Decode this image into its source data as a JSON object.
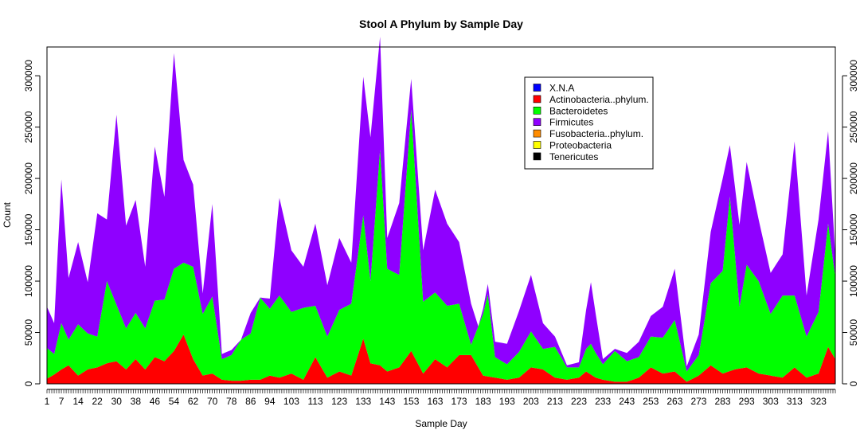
{
  "chart_data": {
    "type": "area",
    "stacked": true,
    "title": "Stool A Phylum by Sample Day",
    "xlabel": "Sample Day",
    "ylabel": "Count",
    "xlim": [
      1,
      330
    ],
    "ylim": [
      0,
      328000
    ],
    "x_ticks": [
      1,
      7,
      14,
      22,
      30,
      38,
      46,
      54,
      62,
      70,
      78,
      86,
      94,
      103,
      113,
      123,
      133,
      143,
      153,
      163,
      173,
      183,
      193,
      203,
      213,
      223,
      233,
      243,
      253,
      263,
      273,
      283,
      293,
      303,
      313,
      323
    ],
    "y_ticks": [
      0,
      50000,
      100000,
      150000,
      200000,
      250000,
      300000
    ],
    "y_axes": [
      "left",
      "right"
    ],
    "grid": false,
    "legend_position": "top-right",
    "legend": [
      {
        "label": "X.N.A",
        "color": "#0000ff"
      },
      {
        "label": "Actinobacteria..phylum.",
        "color": "#ff0000"
      },
      {
        "label": "Bacteroidetes",
        "color": "#00ff00"
      },
      {
        "label": "Firmicutes",
        "color": "#8f00ff"
      },
      {
        "label": "Fusobacteria..phylum.",
        "color": "#ff8c00"
      },
      {
        "label": "Proteobacteria",
        "color": "#ffff00"
      },
      {
        "label": "Tenericutes",
        "color": "#000000"
      }
    ],
    "stack_order": [
      "Actinobacteria..phylum.",
      "Bacteroidetes",
      "Firmicutes"
    ],
    "series": [
      {
        "name": "Actinobacteria..phylum.",
        "color": "#ff0000",
        "points": [
          [
            1,
            5000
          ],
          [
            4,
            9000
          ],
          [
            7,
            14000
          ],
          [
            10,
            18000
          ],
          [
            14,
            8000
          ],
          [
            18,
            14000
          ],
          [
            22,
            16000
          ],
          [
            26,
            20000
          ],
          [
            30,
            22000
          ],
          [
            34,
            14000
          ],
          [
            38,
            24000
          ],
          [
            42,
            14000
          ],
          [
            46,
            26000
          ],
          [
            50,
            22000
          ],
          [
            54,
            32000
          ],
          [
            58,
            48000
          ],
          [
            62,
            24000
          ],
          [
            66,
            8000
          ],
          [
            70,
            10000
          ],
          [
            74,
            4000
          ],
          [
            78,
            3000
          ],
          [
            82,
            3000
          ],
          [
            86,
            4000
          ],
          [
            90,
            4000
          ],
          [
            94,
            8000
          ],
          [
            98,
            6000
          ],
          [
            103,
            10000
          ],
          [
            108,
            4000
          ],
          [
            113,
            26000
          ],
          [
            118,
            6000
          ],
          [
            123,
            12000
          ],
          [
            128,
            8000
          ],
          [
            133,
            44000
          ],
          [
            136,
            20000
          ],
          [
            140,
            18000
          ],
          [
            143,
            12000
          ],
          [
            148,
            16000
          ],
          [
            153,
            32000
          ],
          [
            158,
            10000
          ],
          [
            163,
            24000
          ],
          [
            168,
            16000
          ],
          [
            173,
            28000
          ],
          [
            178,
            28000
          ],
          [
            183,
            8000
          ],
          [
            188,
            6000
          ],
          [
            193,
            4000
          ],
          [
            198,
            6000
          ],
          [
            203,
            16000
          ],
          [
            208,
            14000
          ],
          [
            213,
            6000
          ],
          [
            218,
            4000
          ],
          [
            223,
            6000
          ],
          [
            226,
            12000
          ],
          [
            230,
            6000
          ],
          [
            233,
            4000
          ],
          [
            238,
            2000
          ],
          [
            243,
            2000
          ],
          [
            248,
            6000
          ],
          [
            253,
            16000
          ],
          [
            258,
            10000
          ],
          [
            263,
            12000
          ],
          [
            268,
            2000
          ],
          [
            273,
            8000
          ],
          [
            278,
            18000
          ],
          [
            283,
            10000
          ],
          [
            288,
            14000
          ],
          [
            293,
            16000
          ],
          [
            298,
            10000
          ],
          [
            303,
            8000
          ],
          [
            308,
            6000
          ],
          [
            313,
            16000
          ],
          [
            318,
            6000
          ],
          [
            323,
            10000
          ],
          [
            327,
            36000
          ],
          [
            330,
            24000
          ]
        ]
      },
      {
        "name": "Bacteroidetes",
        "color": "#00ff00",
        "points": [
          [
            1,
            30000
          ],
          [
            4,
            20000
          ],
          [
            7,
            45000
          ],
          [
            10,
            25000
          ],
          [
            14,
            50000
          ],
          [
            18,
            35000
          ],
          [
            22,
            30000
          ],
          [
            26,
            80000
          ],
          [
            30,
            55000
          ],
          [
            34,
            40000
          ],
          [
            38,
            45000
          ],
          [
            42,
            40000
          ],
          [
            46,
            55000
          ],
          [
            50,
            60000
          ],
          [
            54,
            80000
          ],
          [
            58,
            70000
          ],
          [
            62,
            90000
          ],
          [
            66,
            60000
          ],
          [
            70,
            75000
          ],
          [
            74,
            20000
          ],
          [
            78,
            25000
          ],
          [
            82,
            40000
          ],
          [
            86,
            45000
          ],
          [
            90,
            80000
          ],
          [
            94,
            65000
          ],
          [
            98,
            80000
          ],
          [
            103,
            60000
          ],
          [
            108,
            70000
          ],
          [
            113,
            50000
          ],
          [
            118,
            40000
          ],
          [
            123,
            60000
          ],
          [
            128,
            70000
          ],
          [
            133,
            120000
          ],
          [
            136,
            80000
          ],
          [
            140,
            210000
          ],
          [
            143,
            100000
          ],
          [
            148,
            90000
          ],
          [
            153,
            235000
          ],
          [
            158,
            70000
          ],
          [
            163,
            65000
          ],
          [
            168,
            60000
          ],
          [
            173,
            50000
          ],
          [
            178,
            10000
          ],
          [
            181,
            40000
          ],
          [
            185,
            80000
          ],
          [
            188,
            20000
          ],
          [
            193,
            15000
          ],
          [
            198,
            25000
          ],
          [
            203,
            35000
          ],
          [
            208,
            20000
          ],
          [
            213,
            30000
          ],
          [
            218,
            12000
          ],
          [
            223,
            10000
          ],
          [
            228,
            30000
          ],
          [
            233,
            15000
          ],
          [
            238,
            30000
          ],
          [
            243,
            20000
          ],
          [
            248,
            20000
          ],
          [
            253,
            30000
          ],
          [
            258,
            35000
          ],
          [
            263,
            50000
          ],
          [
            268,
            10000
          ],
          [
            273,
            20000
          ],
          [
            278,
            80000
          ],
          [
            283,
            100000
          ],
          [
            286,
            170000
          ],
          [
            290,
            60000
          ],
          [
            293,
            100000
          ],
          [
            298,
            90000
          ],
          [
            303,
            60000
          ],
          [
            308,
            80000
          ],
          [
            313,
            70000
          ],
          [
            318,
            40000
          ],
          [
            323,
            60000
          ],
          [
            327,
            120000
          ],
          [
            330,
            80000
          ]
        ]
      },
      {
        "name": "Firmicutes",
        "color": "#8f00ff",
        "points": [
          [
            1,
            40000
          ],
          [
            4,
            30000
          ],
          [
            7,
            140000
          ],
          [
            10,
            60000
          ],
          [
            14,
            80000
          ],
          [
            18,
            50000
          ],
          [
            22,
            120000
          ],
          [
            26,
            60000
          ],
          [
            30,
            185000
          ],
          [
            34,
            100000
          ],
          [
            38,
            110000
          ],
          [
            42,
            60000
          ],
          [
            46,
            150000
          ],
          [
            50,
            100000
          ],
          [
            54,
            210000
          ],
          [
            58,
            100000
          ],
          [
            62,
            80000
          ],
          [
            66,
            20000
          ],
          [
            70,
            90000
          ],
          [
            74,
            5000
          ],
          [
            78,
            5000
          ],
          [
            82,
            0
          ],
          [
            86,
            20000
          ],
          [
            90,
            0
          ],
          [
            94,
            10000
          ],
          [
            98,
            95000
          ],
          [
            103,
            60000
          ],
          [
            108,
            40000
          ],
          [
            113,
            80000
          ],
          [
            118,
            50000
          ],
          [
            123,
            70000
          ],
          [
            128,
            40000
          ],
          [
            133,
            135000
          ],
          [
            136,
            140000
          ],
          [
            140,
            110000
          ],
          [
            143,
            30000
          ],
          [
            148,
            70000
          ],
          [
            153,
            30000
          ],
          [
            158,
            50000
          ],
          [
            163,
            100000
          ],
          [
            168,
            80000
          ],
          [
            173,
            60000
          ],
          [
            178,
            40000
          ],
          [
            181,
            0
          ],
          [
            185,
            10000
          ],
          [
            188,
            15000
          ],
          [
            193,
            20000
          ],
          [
            198,
            40000
          ],
          [
            203,
            55000
          ],
          [
            208,
            25000
          ],
          [
            213,
            10000
          ],
          [
            218,
            2000
          ],
          [
            223,
            5000
          ],
          [
            228,
            60000
          ],
          [
            233,
            5000
          ],
          [
            238,
            2000
          ],
          [
            243,
            8000
          ],
          [
            248,
            15000
          ],
          [
            253,
            20000
          ],
          [
            258,
            30000
          ],
          [
            263,
            50000
          ],
          [
            268,
            5000
          ],
          [
            273,
            20000
          ],
          [
            278,
            50000
          ],
          [
            283,
            90000
          ],
          [
            286,
            50000
          ],
          [
            290,
            80000
          ],
          [
            293,
            100000
          ],
          [
            298,
            60000
          ],
          [
            303,
            40000
          ],
          [
            308,
            40000
          ],
          [
            313,
            150000
          ],
          [
            318,
            40000
          ],
          [
            323,
            90000
          ],
          [
            327,
            90000
          ],
          [
            330,
            20000
          ]
        ]
      }
    ]
  }
}
